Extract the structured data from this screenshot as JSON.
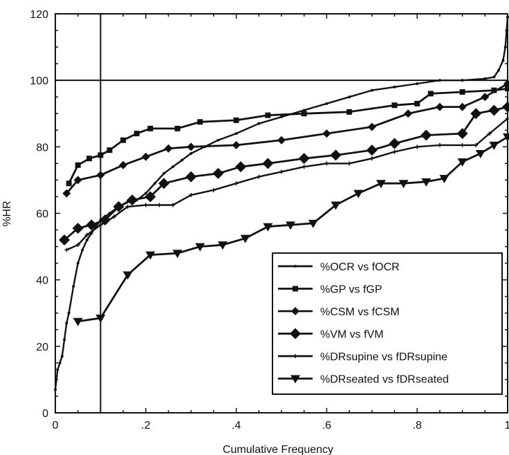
{
  "chart_data": {
    "type": "line",
    "xlabel": "Cumulative Frequency",
    "ylabel": "%HR",
    "xlim": [
      0,
      1
    ],
    "ylim": [
      0,
      120
    ],
    "x_tick_labels": [
      "0",
      ".2",
      ".4",
      ".6",
      ".8",
      "1"
    ],
    "x_tick_values": [
      0,
      0.2,
      0.4,
      0.6,
      0.8,
      1
    ],
    "y_tick_labels": [
      "0",
      "20",
      "40",
      "60",
      "80",
      "100",
      "120"
    ],
    "y_tick_values": [
      0,
      20,
      40,
      60,
      80,
      100,
      120
    ],
    "reference_lines": {
      "horizontal_y": 100,
      "vertical_x": 0.1
    },
    "grid": false,
    "legend_position": "lower-right",
    "series": [
      {
        "name": "%OCR vs fOCR",
        "marker": "small-dot",
        "x": [
          0.0,
          0.005,
          0.01,
          0.015,
          0.02,
          0.025,
          0.03,
          0.04,
          0.05,
          0.06,
          0.07,
          0.08,
          0.09,
          0.1,
          0.12,
          0.14,
          0.16,
          0.18,
          0.2,
          0.22,
          0.24,
          0.26,
          0.28,
          0.3,
          0.33,
          0.36,
          0.4,
          0.45,
          0.5,
          0.55,
          0.6,
          0.65,
          0.7,
          0.75,
          0.8,
          0.85,
          0.9,
          0.95,
          0.97,
          0.98,
          0.99,
          0.995,
          1.0
        ],
        "y": [
          7,
          13,
          15,
          17,
          22,
          27,
          30,
          38,
          45,
          49,
          52,
          54,
          56,
          58,
          60,
          62,
          63.5,
          64,
          66,
          69,
          72,
          74,
          76,
          78,
          80,
          82,
          84,
          87,
          89,
          91,
          93,
          95,
          97,
          98,
          99,
          100,
          100,
          100.5,
          101,
          103,
          106,
          110,
          119
        ]
      },
      {
        "name": "%GP vs fGP",
        "marker": "square",
        "x": [
          0.03,
          0.05,
          0.075,
          0.1,
          0.12,
          0.15,
          0.18,
          0.21,
          0.27,
          0.32,
          0.4,
          0.47,
          0.55,
          0.65,
          0.75,
          0.8,
          0.83,
          0.9,
          0.97,
          1.0
        ],
        "y": [
          69,
          74.5,
          76.5,
          77.5,
          79,
          82,
          84,
          85.5,
          85.5,
          87.5,
          88,
          89.5,
          90,
          90.5,
          92.5,
          93,
          96,
          96.5,
          97,
          97.5
        ]
      },
      {
        "name": "%CSM vs fCSM",
        "marker": "diamond",
        "x": [
          0.025,
          0.05,
          0.1,
          0.15,
          0.2,
          0.25,
          0.3,
          0.4,
          0.5,
          0.6,
          0.7,
          0.78,
          0.85,
          0.9,
          0.95,
          1.0
        ],
        "y": [
          66,
          70,
          71.5,
          74.5,
          77,
          79.5,
          80,
          80.5,
          82,
          84,
          86,
          90,
          92,
          92,
          95,
          99
        ]
      },
      {
        "name": "%VM vs fVM",
        "marker": "large-diamond",
        "x": [
          0.02,
          0.05,
          0.08,
          0.11,
          0.14,
          0.17,
          0.21,
          0.24,
          0.3,
          0.36,
          0.41,
          0.47,
          0.55,
          0.62,
          0.7,
          0.75,
          0.82,
          0.9,
          0.93,
          0.97,
          1.0
        ],
        "y": [
          52,
          55.5,
          56.5,
          58,
          62,
          64,
          65,
          69,
          71,
          72,
          74,
          75,
          76.5,
          77.5,
          79,
          81,
          83.5,
          84,
          90,
          91,
          92
        ]
      },
      {
        "name": "%DRsupine vs fDRsupine",
        "marker": "small-plus",
        "x": [
          0.025,
          0.05,
          0.07,
          0.1,
          0.13,
          0.16,
          0.2,
          0.23,
          0.26,
          0.3,
          0.35,
          0.4,
          0.45,
          0.5,
          0.55,
          0.6,
          0.65,
          0.7,
          0.75,
          0.8,
          0.85,
          0.9,
          0.93,
          0.96,
          1.0
        ],
        "y": [
          49,
          50.5,
          53.5,
          56.5,
          59,
          62,
          62.5,
          62.5,
          62.5,
          65.5,
          67,
          69,
          71,
          72.5,
          74,
          75,
          75,
          76.5,
          78.5,
          80,
          80.5,
          80.5,
          80.5,
          84,
          88.5
        ]
      },
      {
        "name": "%DRseated vs fDRseated",
        "marker": "triangle-down",
        "x": [
          0.05,
          0.1,
          0.16,
          0.21,
          0.27,
          0.32,
          0.37,
          0.42,
          0.47,
          0.52,
          0.57,
          0.62,
          0.67,
          0.72,
          0.77,
          0.82,
          0.86,
          0.9,
          0.94,
          0.97,
          1.0
        ],
        "y": [
          27.5,
          28.5,
          41.5,
          47.5,
          48,
          50,
          50.5,
          52.5,
          56,
          56.5,
          57,
          62.5,
          66,
          69,
          69,
          69.5,
          70.5,
          75.5,
          78,
          80.5,
          83
        ]
      }
    ]
  }
}
